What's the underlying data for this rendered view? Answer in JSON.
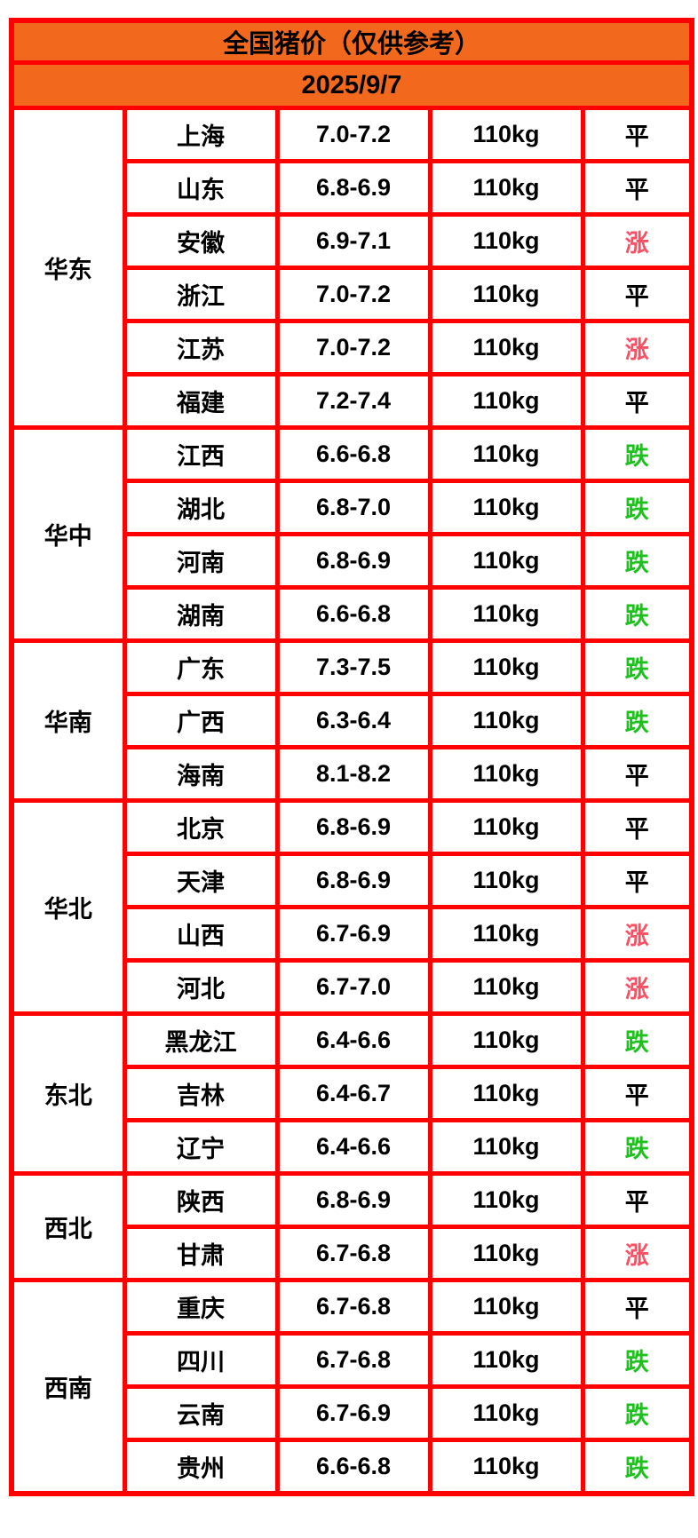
{
  "title": "全国猪价（仅供参考）",
  "date": "2025/9/7",
  "colors": {
    "header_bg": "#F2691E",
    "border_red": "#FF0000",
    "status_up": "#FA5064",
    "status_down": "#1CC11C",
    "status_flat": "#000000"
  },
  "status_color_map": {
    "涨": "status_up",
    "跌": "status_down",
    "平": "status_flat"
  },
  "regions": [
    {
      "name": "华东",
      "rows": [
        {
          "province": "上海",
          "price": "7.0-7.2",
          "weight": "110kg",
          "status": "平"
        },
        {
          "province": "山东",
          "price": "6.8-6.9",
          "weight": "110kg",
          "status": "平"
        },
        {
          "province": "安徽",
          "price": "6.9-7.1",
          "weight": "110kg",
          "status": "涨"
        },
        {
          "province": "浙江",
          "price": "7.0-7.2",
          "weight": "110kg",
          "status": "平"
        },
        {
          "province": "江苏",
          "price": "7.0-7.2",
          "weight": "110kg",
          "status": "涨"
        },
        {
          "province": "福建",
          "price": "7.2-7.4",
          "weight": "110kg",
          "status": "平"
        }
      ]
    },
    {
      "name": "华中",
      "rows": [
        {
          "province": "江西",
          "price": "6.6-6.8",
          "weight": "110kg",
          "status": "跌"
        },
        {
          "province": "湖北",
          "price": "6.8-7.0",
          "weight": "110kg",
          "status": "跌"
        },
        {
          "province": "河南",
          "price": "6.8-6.9",
          "weight": "110kg",
          "status": "跌"
        },
        {
          "province": "湖南",
          "price": "6.6-6.8",
          "weight": "110kg",
          "status": "跌"
        }
      ]
    },
    {
      "name": "华南",
      "rows": [
        {
          "province": "广东",
          "price": "7.3-7.5",
          "weight": "110kg",
          "status": "跌"
        },
        {
          "province": "广西",
          "price": "6.3-6.4",
          "weight": "110kg",
          "status": "跌"
        },
        {
          "province": "海南",
          "price": "8.1-8.2",
          "weight": "110kg",
          "status": "平"
        }
      ]
    },
    {
      "name": "华北",
      "rows": [
        {
          "province": "北京",
          "price": "6.8-6.9",
          "weight": "110kg",
          "status": "平"
        },
        {
          "province": "天津",
          "price": "6.8-6.9",
          "weight": "110kg",
          "status": "平"
        },
        {
          "province": "山西",
          "price": "6.7-6.9",
          "weight": "110kg",
          "status": "涨"
        },
        {
          "province": "河北",
          "price": "6.7-7.0",
          "weight": "110kg",
          "status": "涨"
        }
      ]
    },
    {
      "name": "东北",
      "rows": [
        {
          "province": "黑龙江",
          "price": "6.4-6.6",
          "weight": "110kg",
          "status": "跌"
        },
        {
          "province": "吉林",
          "price": "6.4-6.7",
          "weight": "110kg",
          "status": "平"
        },
        {
          "province": "辽宁",
          "price": "6.4-6.6",
          "weight": "110kg",
          "status": "跌"
        }
      ]
    },
    {
      "name": "西北",
      "rows": [
        {
          "province": "陕西",
          "price": "6.8-6.9",
          "weight": "110kg",
          "status": "平"
        },
        {
          "province": "甘肃",
          "price": "6.7-6.8",
          "weight": "110kg",
          "status": "涨"
        }
      ]
    },
    {
      "name": "西南",
      "rows": [
        {
          "province": "重庆",
          "price": "6.7-6.8",
          "weight": "110kg",
          "status": "平"
        },
        {
          "province": "四川",
          "price": "6.7-6.8",
          "weight": "110kg",
          "status": "跌"
        },
        {
          "province": "云南",
          "price": "6.7-6.9",
          "weight": "110kg",
          "status": "跌"
        },
        {
          "province": "贵州",
          "price": "6.6-6.8",
          "weight": "110kg",
          "status": "跌"
        }
      ]
    }
  ]
}
